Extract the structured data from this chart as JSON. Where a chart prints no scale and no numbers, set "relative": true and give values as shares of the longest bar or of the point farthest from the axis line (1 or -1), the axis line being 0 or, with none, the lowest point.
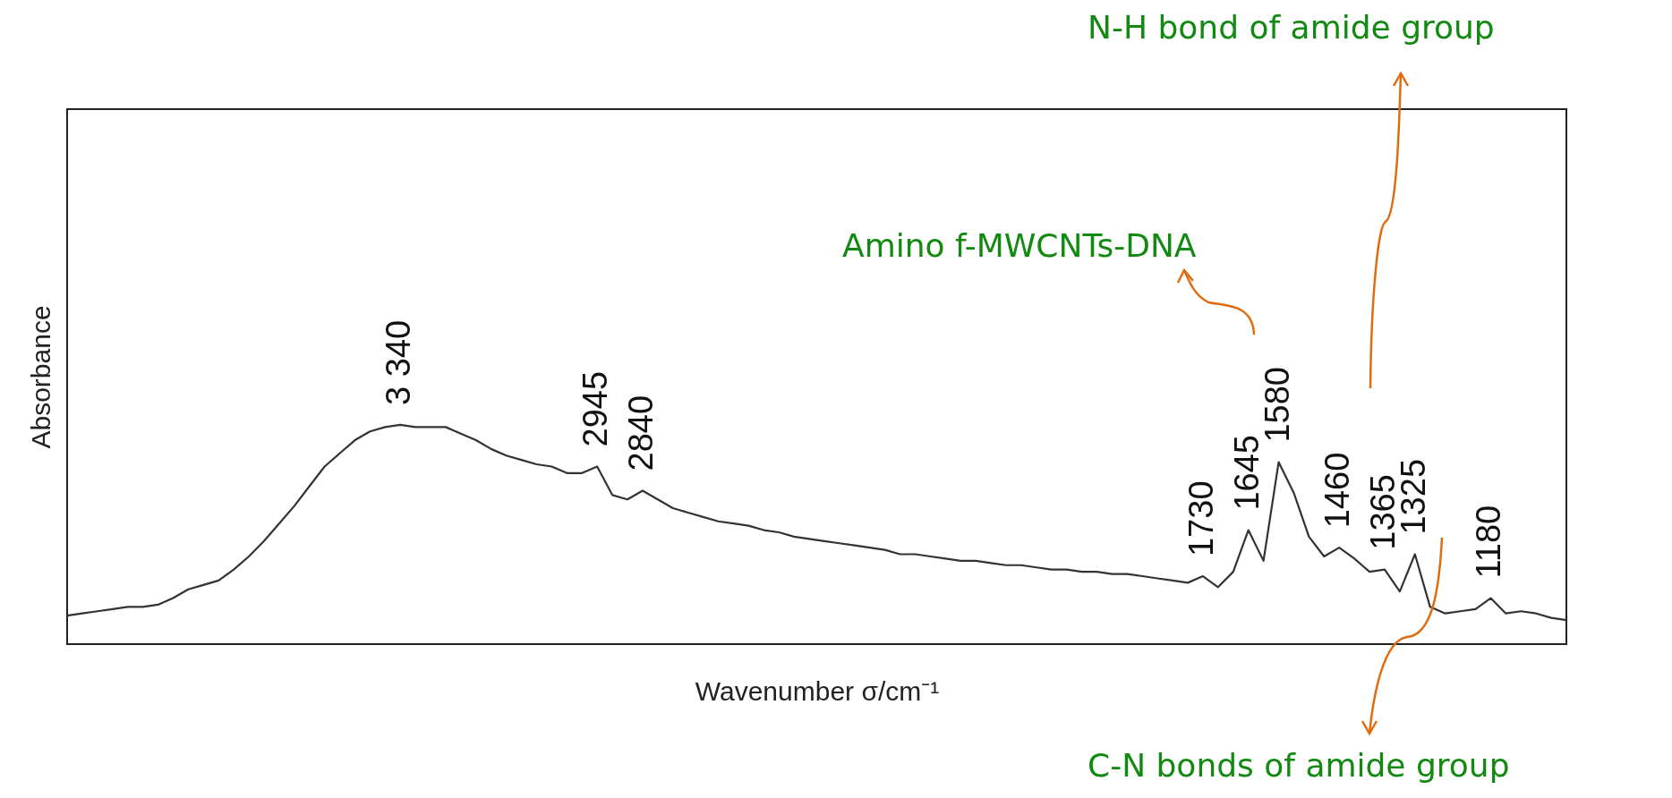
{
  "chart_data": {
    "type": "line",
    "relative": true,
    "xlabel": "Wavenumber   σ/cm⁻¹",
    "ylabel": "Absorbance",
    "marker": "none",
    "line_style": "solid",
    "categories": [
      null,
      null,
      null,
      null,
      null,
      null,
      null,
      null,
      null,
      null,
      null,
      null,
      null,
      null,
      null,
      null,
      null,
      null,
      null,
      null,
      null,
      null,
      null,
      null,
      null,
      null,
      null,
      null,
      null,
      null,
      null,
      null,
      null,
      null,
      null,
      null,
      null,
      null,
      null,
      null,
      null,
      null,
      null,
      null,
      null,
      null,
      null,
      null,
      null,
      null,
      null,
      null,
      null,
      null,
      null,
      null,
      null,
      null,
      null,
      null,
      null,
      null,
      null,
      null,
      null,
      null,
      null,
      null,
      null,
      null,
      null,
      null,
      null,
      null,
      null,
      null,
      null,
      null,
      null,
      null,
      null,
      null,
      null,
      null,
      null,
      null,
      null,
      null,
      null,
      null,
      null,
      null,
      null,
      null,
      null,
      null,
      null,
      null,
      null,
      null
    ],
    "series": [
      {
        "color": "#333333",
        "values": [
          0.13,
          0.14,
          0.15,
          0.16,
          0.17,
          0.17,
          0.18,
          0.21,
          0.25,
          0.27,
          0.29,
          0.34,
          0.4,
          0.47,
          0.55,
          0.63,
          0.72,
          0.81,
          0.87,
          0.93,
          0.97,
          0.99,
          1.0,
          0.99,
          0.99,
          0.99,
          0.96,
          0.93,
          0.89,
          0.86,
          0.84,
          0.82,
          0.81,
          0.78,
          0.78,
          0.81,
          0.68,
          0.66,
          0.7,
          0.66,
          0.62,
          0.6,
          0.58,
          0.56,
          0.55,
          0.54,
          0.52,
          0.51,
          0.49,
          0.48,
          0.47,
          0.46,
          0.45,
          0.44,
          0.43,
          0.41,
          0.41,
          0.4,
          0.39,
          0.38,
          0.38,
          0.37,
          0.36,
          0.36,
          0.35,
          0.34,
          0.34,
          0.33,
          0.33,
          0.32,
          0.32,
          0.31,
          0.3,
          0.29,
          0.28,
          0.31,
          0.26,
          0.33,
          0.52,
          0.38,
          0.83,
          0.69,
          0.49,
          0.4,
          0.44,
          0.39,
          0.33,
          0.34,
          0.24,
          0.41,
          0.17,
          0.14,
          0.15,
          0.16,
          0.21,
          0.14,
          0.15,
          0.14,
          0.12,
          0.11
        ]
      }
    ],
    "annotations": [
      "3 340",
      "2945",
      "2840",
      "1730",
      "1645",
      "1580",
      "1460",
      "1365",
      "1325",
      "1180",
      "Amino f-MWCNTs-DNA",
      "N-H bond of amide group",
      "C-N bonds of amide group"
    ]
  }
}
